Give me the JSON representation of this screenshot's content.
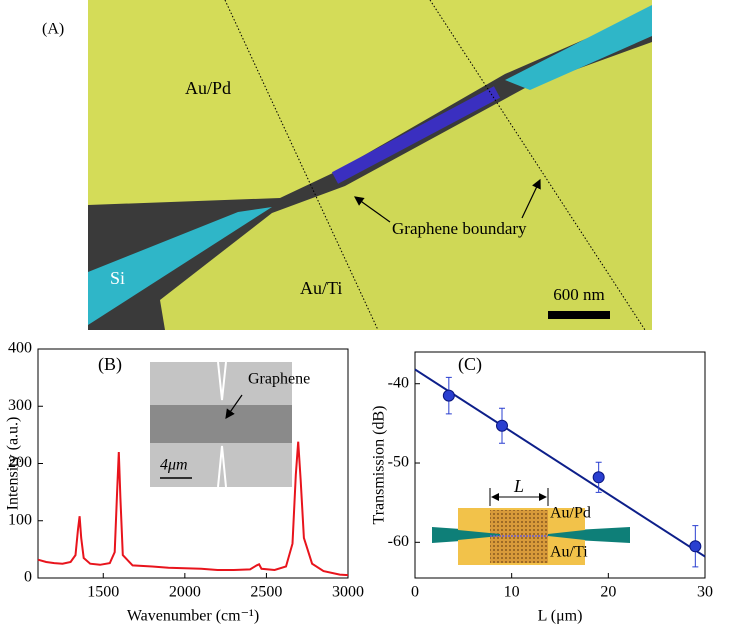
{
  "figure_a": {
    "panel_label": "(A)",
    "labels": [
      "Au/Pd",
      "Au/Ti",
      "Si"
    ],
    "annotation": "Graphene boundary",
    "scale_bar": "600 nm"
  },
  "chart_data": [
    {
      "type": "line",
      "panel_label": "(B)",
      "xlabel": "Wavenumber (cm⁻¹)",
      "ylabel": "Intensity (a.u.)",
      "xlim": [
        1100,
        3000
      ],
      "xticks": [
        1500,
        2000,
        2500,
        3000
      ],
      "ylim": [
        0,
        400
      ],
      "yticks": [
        0,
        100,
        200,
        300,
        400
      ],
      "grid": false,
      "color": "#e8141c",
      "inset": {
        "label": "Graphene",
        "scale_bar": "4μm"
      },
      "x": [
        1100,
        1150,
        1200,
        1250,
        1300,
        1330,
        1345,
        1355,
        1365,
        1380,
        1420,
        1480,
        1540,
        1570,
        1585,
        1595,
        1605,
        1620,
        1680,
        1800,
        1900,
        2000,
        2100,
        2200,
        2300,
        2400,
        2440,
        2455,
        2470,
        2550,
        2620,
        2660,
        2680,
        2695,
        2710,
        2730,
        2780,
        2850,
        2950,
        3000
      ],
      "values": [
        32,
        28,
        26,
        25,
        28,
        40,
        85,
        108,
        70,
        35,
        25,
        23,
        26,
        45,
        150,
        220,
        140,
        40,
        22,
        20,
        18,
        17,
        16,
        14,
        14,
        15,
        22,
        24,
        16,
        14,
        20,
        60,
        180,
        238,
        170,
        70,
        25,
        12,
        6,
        5
      ]
    },
    {
      "type": "scatter",
      "panel_label": "(C)",
      "xlabel": "L (μm)",
      "ylabel": "Transmission (dB)",
      "xlim": [
        0,
        30
      ],
      "xticks": [
        0,
        10,
        20,
        30
      ],
      "ylim": [
        -64.5,
        -36
      ],
      "yticks": [
        -40,
        -50,
        -60
      ],
      "grid": false,
      "color": "#2a3fd0",
      "x": [
        3.5,
        9,
        19,
        29
      ],
      "values": [
        -41.5,
        -45.3,
        -51.8,
        -60.5
      ],
      "errors": [
        2.3,
        2.2,
        1.9,
        2.6
      ],
      "fit": {
        "color": "#0d1f8a",
        "x": [
          0,
          30
        ],
        "values": [
          -38.2,
          -61.8
        ]
      },
      "inset": {
        "length_label": "L",
        "labels": [
          "Au/Pd",
          "Au/Ti"
        ]
      }
    }
  ]
}
